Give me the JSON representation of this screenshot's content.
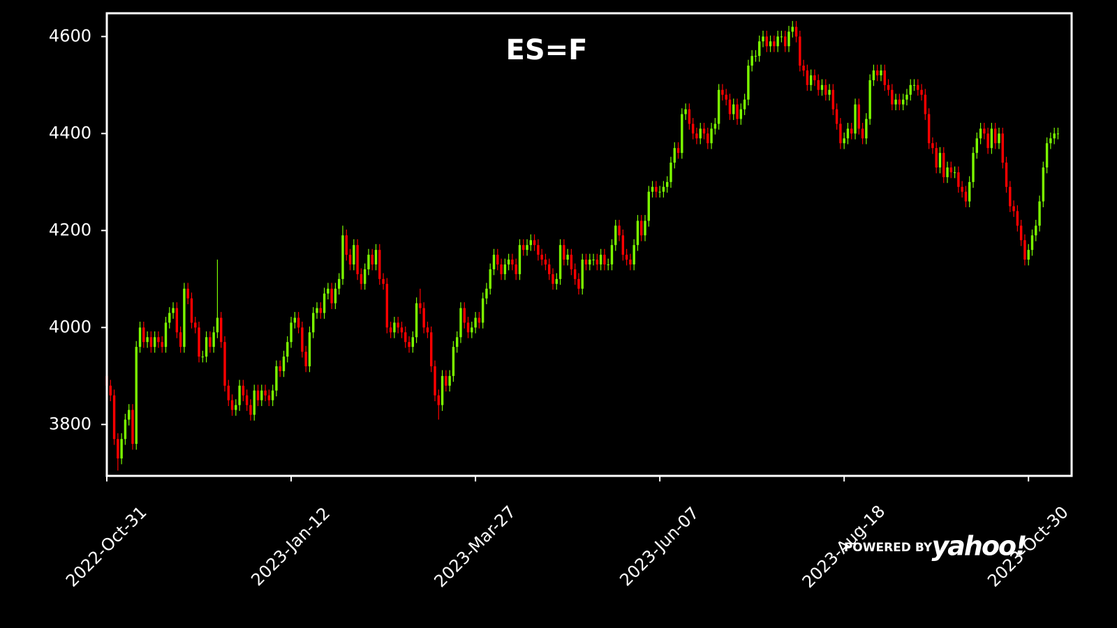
{
  "chart_data": {
    "type": "candlestick",
    "title": "ES=F",
    "annotations": {
      "prefix": "POWERED BY",
      "brand": "yahoo!"
    },
    "up_color": "#7cfc00",
    "down_color": "#ff0000",
    "xlim": [
      0,
      261.7
    ],
    "ylim": [
      3694,
      4648
    ],
    "xticks": [
      {
        "value": 0,
        "label": "2022-Oct-31"
      },
      {
        "value": 50,
        "label": "2023-Jan-12"
      },
      {
        "value": 100,
        "label": "2023-Mar-27"
      },
      {
        "value": 150,
        "label": "2023-Jun-07"
      },
      {
        "value": 200,
        "label": "2023-Aug-18"
      },
      {
        "value": 250,
        "label": "2023-Oct-30"
      }
    ],
    "yticks": [
      3800,
      4000,
      4200,
      4400,
      4600
    ],
    "open": [
      3900,
      3880,
      3860,
      3770,
      3730,
      3770,
      3810,
      3830,
      3760,
      3960,
      4000,
      3970,
      3980,
      3960,
      3980,
      3970,
      3960,
      4010,
      4030,
      4040,
      3990,
      3960,
      4080,
      4060,
      4010,
      4000,
      3940,
      3940,
      3980,
      3960,
      3990,
      4020,
      3970,
      3880,
      3850,
      3830,
      3840,
      3880,
      3860,
      3840,
      3820,
      3870,
      3850,
      3870,
      3860,
      3850,
      3870,
      3920,
      3910,
      3940,
      3970,
      4010,
      4020,
      4000,
      3950,
      3920,
      3990,
      4030,
      4040,
      4030,
      4070,
      4080,
      4050,
      4080,
      4100,
      4190,
      4150,
      4130,
      4170,
      4110,
      4090,
      4120,
      4150,
      4130,
      4160,
      4100,
      4090,
      4000,
      3990,
      4010,
      4000,
      3990,
      3970,
      3960,
      3980,
      4050,
      4040,
      4000,
      3990,
      3920,
      3860,
      3840,
      3900,
      3880,
      3900,
      3960,
      3980,
      4040,
      4010,
      3990,
      4000,
      4020,
      4010,
      4060,
      4080,
      4120,
      4150,
      4130,
      4110,
      4130,
      4140,
      4130,
      4110,
      4170,
      4160,
      4170,
      4180,
      4170,
      4150,
      4140,
      4130,
      4110,
      4090,
      4100,
      4170,
      4140,
      4150,
      4120,
      4100,
      4080,
      4140,
      4130,
      4140,
      4140,
      4130,
      4150,
      4130,
      4130,
      4170,
      4210,
      4190,
      4150,
      4140,
      4130,
      4170,
      4220,
      4190,
      4220,
      4280,
      4290,
      4280,
      4280,
      4290,
      4300,
      4340,
      4370,
      4360,
      4440,
      4450,
      4420,
      4400,
      4390,
      4410,
      4400,
      4380,
      4410,
      4420,
      4490,
      4480,
      4470,
      4440,
      4460,
      4430,
      4450,
      4470,
      4540,
      4560,
      4560,
      4590,
      4600,
      4580,
      4590,
      4580,
      4600,
      4600,
      4580,
      4610,
      4620,
      4600,
      4540,
      4530,
      4500,
      4520,
      4510,
      4490,
      4500,
      4480,
      4490,
      4450,
      4420,
      4380,
      4390,
      4410,
      4400,
      4460,
      4410,
      4390,
      4430,
      4510,
      4530,
      4520,
      4530,
      4500,
      4490,
      4460,
      4470,
      4460,
      4470,
      4480,
      4500,
      4500,
      4490,
      4480,
      4440,
      4380,
      4370,
      4330,
      4360,
      4310,
      4330,
      4320,
      4320,
      4290,
      4280,
      4260,
      4300,
      4360,
      4390,
      4410,
      4400,
      4370,
      4410,
      4380,
      4400,
      4340,
      4290,
      4250,
      4240,
      4210,
      4180,
      4140,
      4160,
      4190,
      4210,
      4260,
      4330,
      4380,
      4390,
      4400
    ],
    "high": [
      3912,
      3892,
      3872,
      3782,
      3782,
      3822,
      3842,
      3842,
      3972,
      4012,
      4012,
      3992,
      3992,
      3992,
      3992,
      3982,
      4022,
      4042,
      4052,
      4052,
      4002,
      4092,
      4092,
      4072,
      4022,
      4012,
      3952,
      3992,
      3992,
      4002,
      4140,
      4032,
      3982,
      3892,
      3862,
      3852,
      3892,
      3892,
      3872,
      3852,
      3882,
      3882,
      3882,
      3882,
      3872,
      3882,
      3932,
      3932,
      3952,
      3982,
      4022,
      4032,
      4032,
      4012,
      3962,
      4002,
      4042,
      4052,
      4052,
      4082,
      4092,
      4092,
      4092,
      4112,
      4210,
      4202,
      4162,
      4182,
      4182,
      4122,
      4132,
      4162,
      4162,
      4172,
      4172,
      4112,
      4102,
      4012,
      4022,
      4022,
      4012,
      4002,
      3982,
      3992,
      4062,
      4080,
      4052,
      4012,
      4002,
      3932,
      3872,
      3912,
      3912,
      3912,
      3972,
      3992,
      4052,
      4052,
      4022,
      4012,
      4032,
      4032,
      4072,
      4092,
      4132,
      4162,
      4162,
      4142,
      4142,
      4152,
      4152,
      4142,
      4182,
      4182,
      4182,
      4192,
      4192,
      4182,
      4162,
      4152,
      4142,
      4122,
      4112,
      4182,
      4182,
      4162,
      4162,
      4132,
      4112,
      4152,
      4152,
      4152,
      4152,
      4152,
      4162,
      4162,
      4142,
      4182,
      4222,
      4222,
      4202,
      4162,
      4152,
      4182,
      4232,
      4232,
      4232,
      4292,
      4302,
      4302,
      4292,
      4302,
      4312,
      4352,
      4382,
      4382,
      4452,
      4462,
      4462,
      4432,
      4412,
      4422,
      4422,
      4412,
      4422,
      4432,
      4502,
      4502,
      4492,
      4482,
      4472,
      4472,
      4462,
      4482,
      4552,
      4572,
      4572,
      4602,
      4612,
      4612,
      4602,
      4602,
      4612,
      4612,
      4612,
      4622,
      4632,
      4632,
      4612,
      4552,
      4542,
      4532,
      4532,
      4522,
      4512,
      4512,
      4502,
      4502,
      4462,
      4432,
      4402,
      4422,
      4422,
      4472,
      4472,
      4422,
      4442,
      4522,
      4542,
      4542,
      4542,
      4542,
      4512,
      4502,
      4482,
      4482,
      4482,
      4492,
      4512,
      4512,
      4512,
      4502,
      4492,
      4452,
      4392,
      4382,
      4372,
      4372,
      4342,
      4342,
      4332,
      4332,
      4302,
      4292,
      4312,
      4372,
      4402,
      4422,
      4422,
      4412,
      4422,
      4422,
      4412,
      4412,
      4352,
      4302,
      4262,
      4252,
      4222,
      4192,
      4172,
      4202,
      4222,
      4272,
      4342,
      4392,
      4402,
      4412,
      4412
    ],
    "low": [
      3868,
      3848,
      3758,
      3705,
      3718,
      3758,
      3798,
      3748,
      3748,
      3948,
      3958,
      3958,
      3948,
      3948,
      3958,
      3948,
      3948,
      3998,
      4018,
      3978,
      3948,
      3948,
      4048,
      3998,
      3988,
      3928,
      3928,
      3928,
      3948,
      3948,
      3978,
      3958,
      3868,
      3838,
      3818,
      3818,
      3828,
      3848,
      3828,
      3808,
      3808,
      3838,
      3838,
      3848,
      3838,
      3838,
      3858,
      3898,
      3898,
      3928,
      3958,
      3998,
      3988,
      3938,
      3908,
      3908,
      3978,
      4018,
      4018,
      4018,
      4058,
      4038,
      4038,
      4068,
      4088,
      4138,
      4118,
      4118,
      4098,
      4078,
      4078,
      4108,
      4118,
      4118,
      4088,
      4078,
      3988,
      3978,
      3978,
      3988,
      3978,
      3958,
      3948,
      3948,
      3968,
      4028,
      3988,
      3978,
      3908,
      3848,
      3810,
      3828,
      3868,
      3868,
      3888,
      3948,
      3968,
      3998,
      3978,
      3978,
      3988,
      3998,
      3998,
      4048,
      4068,
      4108,
      4118,
      4098,
      4098,
      4118,
      4118,
      4098,
      4098,
      4148,
      4148,
      4158,
      4158,
      4138,
      4128,
      4118,
      4098,
      4078,
      4078,
      4088,
      4128,
      4128,
      4108,
      4088,
      4068,
      4068,
      4118,
      4118,
      4128,
      4118,
      4118,
      4118,
      4118,
      4118,
      4158,
      4178,
      4138,
      4128,
      4118,
      4118,
      4158,
      4178,
      4178,
      4208,
      4268,
      4268,
      4268,
      4268,
      4278,
      4288,
      4328,
      4348,
      4348,
      4428,
      4408,
      4388,
      4378,
      4378,
      4388,
      4368,
      4368,
      4398,
      4408,
      4468,
      4458,
      4428,
      4428,
      4418,
      4418,
      4438,
      4458,
      4528,
      4548,
      4548,
      4578,
      4568,
      4568,
      4568,
      4568,
      4588,
      4568,
      4568,
      4598,
      4588,
      4528,
      4518,
      4488,
      4488,
      4498,
      4478,
      4478,
      4468,
      4468,
      4438,
      4408,
      4368,
      4368,
      4378,
      4388,
      4388,
      4398,
      4378,
      4378,
      4418,
      4498,
      4508,
      4508,
      4488,
      4478,
      4448,
      4448,
      4448,
      4448,
      4458,
      4468,
      4488,
      4478,
      4468,
      4428,
      4368,
      4358,
      4318,
      4318,
      4298,
      4298,
      4308,
      4308,
      4278,
      4268,
      4248,
      4248,
      4288,
      4348,
      4378,
      4388,
      4358,
      4358,
      4368,
      4368,
      4328,
      4278,
      4238,
      4228,
      4198,
      4168,
      4128,
      4128,
      4148,
      4178,
      4198,
      4248,
      4318,
      4368,
      4378,
      4388
    ],
    "close": [
      3880,
      3860,
      3770,
      3730,
      3770,
      3810,
      3830,
      3760,
      3960,
      4000,
      3970,
      3980,
      3960,
      3980,
      3970,
      3960,
      4010,
      4030,
      4040,
      3990,
      3960,
      4080,
      4060,
      4010,
      4000,
      3940,
      3940,
      3980,
      3960,
      3990,
      4020,
      3970,
      3880,
      3850,
      3830,
      3840,
      3880,
      3860,
      3840,
      3820,
      3870,
      3850,
      3870,
      3860,
      3850,
      3870,
      3920,
      3910,
      3940,
      3970,
      4010,
      4020,
      4000,
      3950,
      3920,
      3990,
      4030,
      4040,
      4030,
      4070,
      4080,
      4050,
      4080,
      4100,
      4190,
      4150,
      4130,
      4170,
      4110,
      4090,
      4120,
      4150,
      4130,
      4160,
      4100,
      4090,
      4000,
      3990,
      4010,
      4000,
      3990,
      3970,
      3960,
      3980,
      4050,
      4040,
      4000,
      3990,
      3920,
      3860,
      3840,
      3900,
      3880,
      3900,
      3960,
      3980,
      4040,
      4010,
      3990,
      4000,
      4020,
      4010,
      4060,
      4080,
      4120,
      4150,
      4130,
      4110,
      4130,
      4140,
      4130,
      4110,
      4170,
      4160,
      4170,
      4180,
      4170,
      4150,
      4140,
      4130,
      4110,
      4090,
      4100,
      4170,
      4140,
      4150,
      4120,
      4100,
      4080,
      4140,
      4130,
      4140,
      4140,
      4130,
      4150,
      4130,
      4130,
      4170,
      4210,
      4190,
      4150,
      4140,
      4130,
      4170,
      4220,
      4190,
      4220,
      4280,
      4290,
      4280,
      4280,
      4290,
      4300,
      4340,
      4370,
      4360,
      4440,
      4450,
      4420,
      4400,
      4390,
      4410,
      4400,
      4380,
      4410,
      4420,
      4490,
      4480,
      4470,
      4440,
      4460,
      4430,
      4450,
      4470,
      4540,
      4560,
      4560,
      4590,
      4600,
      4580,
      4590,
      4580,
      4600,
      4600,
      4580,
      4610,
      4620,
      4600,
      4540,
      4530,
      4500,
      4520,
      4510,
      4490,
      4500,
      4480,
      4490,
      4450,
      4420,
      4380,
      4390,
      4410,
      4400,
      4460,
      4410,
      4390,
      4430,
      4510,
      4530,
      4520,
      4530,
      4500,
      4490,
      4460,
      4470,
      4460,
      4470,
      4480,
      4500,
      4500,
      4490,
      4480,
      4440,
      4380,
      4370,
      4330,
      4360,
      4310,
      4330,
      4320,
      4320,
      4290,
      4280,
      4260,
      4300,
      4360,
      4390,
      4410,
      4400,
      4370,
      4410,
      4380,
      4400,
      4340,
      4290,
      4250,
      4240,
      4210,
      4180,
      4140,
      4160,
      4190,
      4210,
      4260,
      4330,
      4380,
      4390,
      4400,
      4400
    ]
  }
}
